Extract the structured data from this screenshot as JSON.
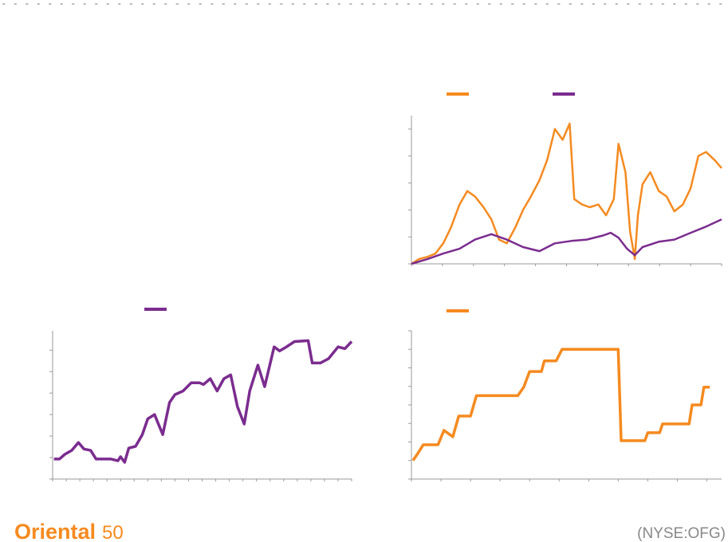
{
  "chart_data": [
    {
      "type": "line",
      "xlim": [
        0,
        40
      ],
      "xticks": [
        0,
        4,
        8,
        12,
        16,
        20,
        24,
        28,
        32,
        36,
        40
      ],
      "ylim": [
        0,
        5.5
      ],
      "yticks": [
        0,
        1,
        2,
        3,
        4,
        5
      ],
      "series": [
        {
          "color": "#f58a1f",
          "x": [
            0,
            1,
            2.1,
            3.1,
            4.1,
            5.1,
            6.2,
            7.2,
            8.2,
            9.3,
            10.3,
            11.3,
            12.3,
            13.4,
            14.4,
            15.4,
            16.5,
            17.5,
            18.5,
            19.5,
            20.4,
            21,
            22,
            23,
            24.1,
            25.1,
            26.1,
            26.7,
            27.6,
            28.2,
            28.8,
            29.2,
            29.8,
            30.8,
            31.9,
            32.9,
            33.9,
            35,
            36,
            37,
            38,
            39.1,
            40
          ],
          "values": [
            0,
            0.18,
            0.26,
            0.38,
            0.76,
            1.35,
            2.2,
            2.7,
            2.5,
            2.1,
            1.65,
            0.9,
            0.76,
            1.35,
            2.0,
            2.5,
            3.1,
            3.85,
            5.0,
            4.6,
            5.2,
            2.4,
            2.2,
            2.1,
            2.2,
            1.8,
            2.4,
            4.45,
            3.4,
            1.2,
            0.18,
            1.8,
            2.95,
            3.4,
            2.7,
            2.5,
            1.95,
            2.2,
            2.8,
            4.0,
            4.15,
            3.85,
            3.55
          ]
        },
        {
          "color": "#7b2c8f",
          "x": [
            0,
            2.1,
            4.1,
            6.2,
            8.2,
            10.3,
            12.3,
            14.4,
            16.5,
            18.5,
            20.6,
            22.6,
            24.7,
            25.7,
            26.7,
            27.8,
            28.8,
            29.8,
            31.9,
            33.9,
            36,
            38,
            40
          ],
          "values": [
            0,
            0.18,
            0.38,
            0.56,
            0.9,
            1.1,
            0.9,
            0.62,
            0.47,
            0.76,
            0.85,
            0.9,
            1.05,
            1.15,
            0.97,
            0.56,
            0.32,
            0.62,
            0.82,
            0.9,
            1.15,
            1.38,
            1.65
          ]
        }
      ]
    },
    {
      "type": "line",
      "xlim": [
        0,
        22
      ],
      "xticks": [
        0,
        1,
        2,
        3,
        4,
        5,
        6,
        7,
        8,
        9,
        10,
        11,
        12,
        13,
        14,
        15,
        16,
        17,
        18,
        19,
        20,
        21,
        22
      ],
      "ylim": [
        0,
        6.9
      ],
      "yticks": [
        0,
        1,
        2,
        3,
        4,
        5,
        6
      ],
      "series": [
        {
          "color": "#7b2c8f",
          "x": [
            0.1,
            0.5,
            0.9,
            1.4,
            1.9,
            2.3,
            2.8,
            3.2,
            3.8,
            4.3,
            4.8,
            5,
            5.3,
            5.6,
            6.1,
            6.6,
            7,
            7.5,
            8.1,
            8.6,
            9,
            9.6,
            10.2,
            10.8,
            11.1,
            11.6,
            12.1,
            12.6,
            13.1,
            13.6,
            14.1,
            14.5,
            15.1,
            15.6,
            16.3,
            16.7,
            17.2,
            17.8,
            18.8,
            19.1,
            19.7,
            20.3,
            21,
            21.5,
            22
          ],
          "values": [
            0.93,
            0.93,
            1.15,
            1.33,
            1.7,
            1.4,
            1.33,
            0.93,
            0.93,
            0.93,
            0.85,
            1.04,
            0.78,
            1.44,
            1.52,
            2.07,
            2.8,
            3.0,
            2.07,
            3.56,
            3.93,
            4.1,
            4.48,
            4.48,
            4.4,
            4.67,
            4.1,
            4.67,
            4.85,
            3.37,
            2.56,
            4.1,
            5.3,
            4.3,
            6.15,
            5.96,
            6.15,
            6.4,
            6.44,
            5.4,
            5.4,
            5.6,
            6.15,
            6.07,
            6.4
          ]
        }
      ]
    },
    {
      "type": "line",
      "xlim": [
        0,
        10.5
      ],
      "xticks": [
        0,
        1,
        2,
        3,
        4,
        5,
        6,
        7,
        8,
        9,
        10
      ],
      "ylim": [
        0,
        8
      ],
      "yticks": [
        0,
        1,
        2,
        3,
        4,
        5,
        6,
        7,
        8
      ],
      "series": [
        {
          "color": "#f58a1f",
          "x": [
            0.05,
            0.2,
            0.4,
            0.6,
            0.9,
            1.1,
            1.4,
            1.6,
            2,
            2.2,
            3.6,
            3.8,
            4,
            4.4,
            4.5,
            4.9,
            5.1,
            7,
            7.1,
            7.9,
            8,
            8.4,
            8.5,
            9.4,
            9.5,
            9.8,
            9.9,
            10.1
          ],
          "values": [
            1.0,
            1.34,
            1.85,
            1.85,
            1.85,
            2.63,
            2.28,
            3.4,
            3.4,
            4.5,
            4.5,
            4.96,
            5.8,
            5.8,
            6.38,
            6.38,
            7.0,
            7.0,
            2.07,
            2.07,
            2.5,
            2.5,
            2.97,
            2.97,
            4.0,
            4.0,
            4.96,
            4.96
          ]
        }
      ]
    }
  ],
  "footer": {
    "logo": "Oriental",
    "logo_mark": "50",
    "ticker": "(NYSE:OFG)"
  }
}
